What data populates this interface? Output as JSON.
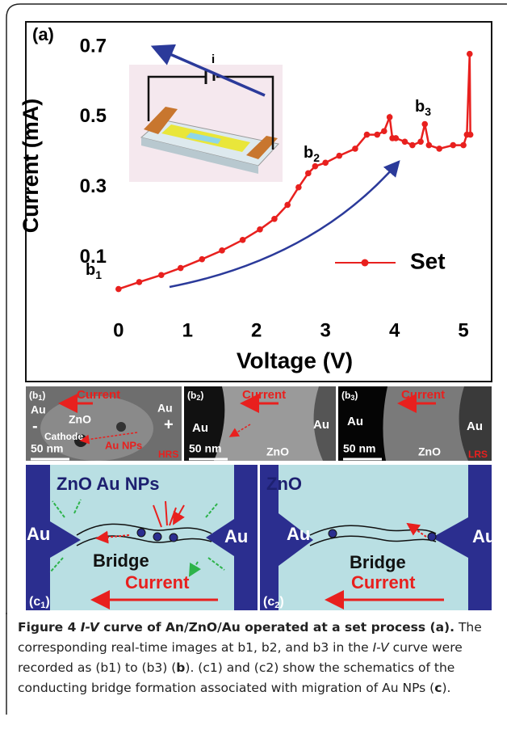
{
  "chart_data": {
    "type": "line",
    "panel_label": "(a)",
    "ylabel": "Current (mA)",
    "xlabel": "Voltage (V)",
    "x": [
      0,
      0.3,
      0.62,
      0.9,
      1.21,
      1.5,
      1.8,
      2.05,
      2.26,
      2.45,
      2.61,
      2.75,
      2.85,
      3.0,
      3.2,
      3.43,
      3.6,
      3.75,
      3.85,
      3.93,
      3.97,
      4.02,
      4.15,
      4.26,
      4.38,
      4.44,
      4.5,
      4.65,
      4.85,
      5.0,
      5.05,
      5.09,
      5.1
    ],
    "series": [
      {
        "name": "Set",
        "color": "#e8201e",
        "values": [
          0.01,
          0.03,
          0.05,
          0.07,
          0.095,
          0.12,
          0.15,
          0.18,
          0.21,
          0.25,
          0.3,
          0.34,
          0.36,
          0.37,
          0.39,
          0.41,
          0.45,
          0.45,
          0.46,
          0.5,
          0.44,
          0.44,
          0.43,
          0.42,
          0.43,
          0.48,
          0.42,
          0.41,
          0.42,
          0.42,
          0.45,
          0.68,
          0.45
        ]
      }
    ],
    "xlim": [
      -1.25,
      5.35
    ],
    "ylim": [
      -0.06,
      0.76
    ],
    "xticks": [
      0,
      1,
      2,
      3,
      4,
      5
    ],
    "yticks": [
      {
        "value": 0.1,
        "label": "0.1"
      },
      {
        "value": 0.3,
        "label": "0.3"
      },
      {
        "value": 0.5,
        "label": "0.5"
      },
      {
        "value": 0.7,
        "label": "0.7"
      }
    ],
    "annotations": [
      {
        "text": "b",
        "sub": "1"
      },
      {
        "text": "b",
        "sub": "2"
      },
      {
        "text": "b",
        "sub": "3"
      }
    ],
    "inset_label": "i",
    "legend": "right"
  },
  "tem_images": [
    {
      "label": {
        "text": "(b",
        "sub": "1",
        "end": ")"
      },
      "current": "Current",
      "labels": [
        "Au",
        "ZnO",
        "Au",
        "-",
        "+",
        "Cathode",
        "Au NPs",
        "50 nm",
        "HRS"
      ]
    },
    {
      "label": {
        "text": "(b",
        "sub": "2",
        "end": ")"
      },
      "current": "Current",
      "labels": [
        "Au",
        "Au",
        "50 nm",
        "ZnO"
      ]
    },
    {
      "label": {
        "text": "(b",
        "sub": "3",
        "end": ")"
      },
      "current": "Current",
      "labels": [
        "Au",
        "Au",
        "50 nm",
        "ZnO",
        "LRS"
      ]
    }
  ],
  "schematics": [
    {
      "label": {
        "text": "(c",
        "sub": "1",
        "end": ")"
      },
      "title": "ZnO Au NPs",
      "left": "Au",
      "right": "Au",
      "bridge": "Bridge",
      "current": "Current"
    },
    {
      "label": {
        "text": "(c",
        "sub": "2",
        "end": ")"
      },
      "title": "ZnO",
      "left": "Au",
      "right": "Au",
      "bridge": "Bridge",
      "current": "Current"
    }
  ],
  "caption": [
    {
      "text": "Figure 4 ",
      "style": "b"
    },
    {
      "text": "I-V",
      "style": "bi"
    },
    {
      "text": " curve of An/ZnO/Au operated at a set process (a).",
      "style": "b"
    },
    {
      "text": " The corresponding real-time images at b1, b2, and b3 in the "
    },
    {
      "text": "I-V",
      "style": "i"
    },
    {
      "text": " curve were recorded as (b1) to (b3) ("
    },
    {
      "text": "b",
      "style": "b"
    },
    {
      "text": "). (c1) and (c2) show the schematics of the conducting bridge formation associated with migration of Au NPs ("
    },
    {
      "text": "c",
      "style": "b"
    },
    {
      "text": ")."
    }
  ]
}
